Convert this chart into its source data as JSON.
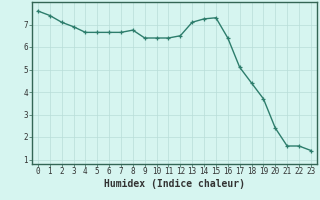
{
  "x": [
    0,
    1,
    2,
    3,
    4,
    5,
    6,
    7,
    8,
    9,
    10,
    11,
    12,
    13,
    14,
    15,
    16,
    17,
    18,
    19,
    20,
    21,
    22,
    23
  ],
  "y": [
    7.6,
    7.4,
    7.1,
    6.9,
    6.65,
    6.65,
    6.65,
    6.65,
    6.75,
    6.4,
    6.4,
    6.4,
    6.5,
    7.1,
    7.25,
    7.3,
    6.4,
    5.1,
    4.4,
    3.7,
    2.4,
    1.6,
    1.6,
    1.4
  ],
  "line_color": "#2d7d6c",
  "marker": "+",
  "marker_size": 3,
  "marker_linewidth": 0.9,
  "background_color": "#d6f5f0",
  "grid_color": "#b8ddd8",
  "xlabel": "Humidex (Indice chaleur)",
  "xlabel_fontsize": 7,
  "xlim": [
    -0.5,
    23.5
  ],
  "ylim": [
    0.8,
    8.0
  ],
  "yticks": [
    1,
    2,
    3,
    4,
    5,
    6,
    7
  ],
  "xticks": [
    0,
    1,
    2,
    3,
    4,
    5,
    6,
    7,
    8,
    9,
    10,
    11,
    12,
    13,
    14,
    15,
    16,
    17,
    18,
    19,
    20,
    21,
    22,
    23
  ],
  "tick_fontsize": 5.5,
  "linewidth": 1.0,
  "axis_color": "#336655",
  "spine_linewidth": 1.0
}
